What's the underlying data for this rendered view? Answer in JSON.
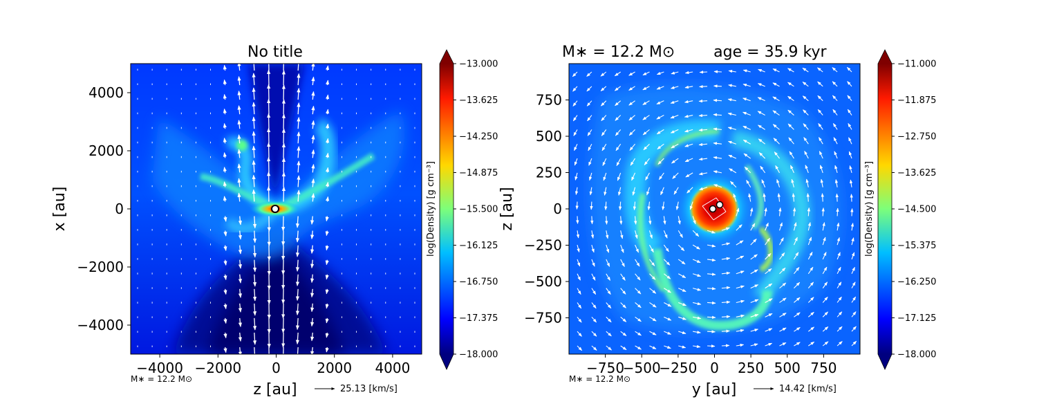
{
  "chart_data": [
    {
      "type": "heatmap",
      "title": "No title",
      "xlabel": "z [au]",
      "ylabel": "x [au]",
      "xlim": [
        -5000,
        5000
      ],
      "ylim": [
        -5000,
        5000
      ],
      "xticks": [
        -4000,
        -2000,
        0,
        2000,
        4000
      ],
      "yticks": [
        -4000,
        -2000,
        0,
        2000,
        4000
      ],
      "xtick_labels": [
        "−4000",
        "−2000",
        "0",
        "2000",
        "4000"
      ],
      "ytick_labels": [
        "−4000",
        "−2000",
        "0",
        "2000",
        "4000"
      ],
      "grid": false,
      "colormap": "jet",
      "colorbar": {
        "label": "log(Density) [g cm⁻³]",
        "range": [
          -18.0,
          -13.0
        ],
        "ticks": [
          -13.0,
          -13.625,
          -14.25,
          -14.875,
          -15.5,
          -16.125,
          -16.75,
          -17.375,
          -18.0
        ],
        "tick_labels": [
          "−13.000",
          "−13.625",
          "−14.250",
          "−14.875",
          "−15.500",
          "−16.125",
          "−16.750",
          "−17.375",
          "−18.000"
        ]
      },
      "annotation": "M∗ = 12.2 M⊙",
      "quiver_key": "25.13 [km/s]",
      "sink_particles": [
        {
          "x": 0,
          "y": 0
        }
      ],
      "field_description": "bipolar outflow cavity along z with dense filaments; velocity vectors along outflow axis"
    },
    {
      "type": "heatmap",
      "title": "M∗ = 12.2 M⊙        age = 35.9 kyr",
      "xlabel": "y [au]",
      "ylabel": "z [au]",
      "xlim": [
        -1000,
        1000
      ],
      "ylim": [
        -1000,
        1000
      ],
      "xticks": [
        -750,
        -500,
        -250,
        0,
        250,
        500,
        750
      ],
      "yticks": [
        -750,
        -500,
        -250,
        0,
        250,
        500,
        750
      ],
      "xtick_labels": [
        "−750",
        "−500",
        "−250",
        "0",
        "250",
        "500",
        "750"
      ],
      "ytick_labels": [
        "−750",
        "−500",
        "−250",
        "0",
        "250",
        "500",
        "750"
      ],
      "grid": false,
      "colormap": "jet",
      "colorbar": {
        "label": "log(Density) [g cm⁻³]",
        "range": [
          -18.0,
          -11.0
        ],
        "ticks": [
          -11.0,
          -11.875,
          -12.75,
          -13.625,
          -14.5,
          -15.375,
          -16.25,
          -17.125,
          -18.0
        ],
        "tick_labels": [
          "−11.000",
          "−11.875",
          "−12.750",
          "−13.625",
          "−14.500",
          "−15.375",
          "−16.250",
          "−17.125",
          "−18.000"
        ]
      },
      "annotation": "M∗ = 12.2 M⊙",
      "quiver_key": "14.42 [km/s]",
      "sink_particles": [
        {
          "x": -10,
          "y": 0
        },
        {
          "x": 40,
          "y": 25
        }
      ],
      "field_description": "spiral arms around a dense central disk; rotating velocity field"
    }
  ]
}
